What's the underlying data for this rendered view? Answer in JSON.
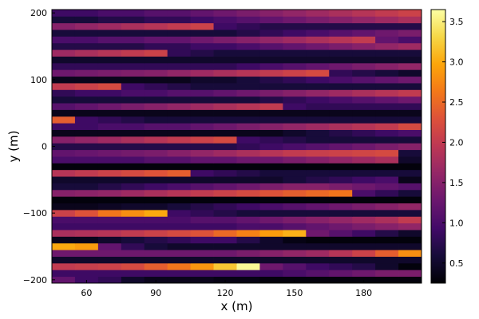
{
  "chart_data": {
    "type": "heatmap",
    "title": "",
    "xlabel": "x (m)",
    "ylabel": "y (m)",
    "colormap": "inferno",
    "grid": false,
    "legend": "none",
    "x_centers": [
      50,
      60,
      70,
      80,
      90,
      100,
      110,
      120,
      130,
      140,
      150,
      160,
      170,
      180,
      190,
      200
    ],
    "x_range": [
      45,
      205
    ],
    "y_range": [
      -205,
      205
    ],
    "y_centers": [
      -200,
      -190,
      -180,
      -170,
      -160,
      -150,
      -140,
      -130,
      -120,
      -110,
      -100,
      -90,
      -80,
      -70,
      -60,
      -50,
      -40,
      -30,
      -20,
      -10,
      0,
      10,
      20,
      30,
      40,
      50,
      60,
      70,
      80,
      90,
      100,
      110,
      120,
      130,
      140,
      150,
      160,
      170,
      180,
      190,
      200
    ],
    "x_ticks": [
      60,
      90,
      120,
      150,
      180
    ],
    "x_tick_labels": [
      "60",
      "90",
      "120",
      "150",
      "180"
    ],
    "y_ticks": [
      -200,
      -100,
      0,
      100,
      200
    ],
    "y_tick_labels": [
      "−200",
      "−100",
      "0",
      "100",
      "200"
    ],
    "colorbar": {
      "range": [
        0.25,
        3.65
      ],
      "ticks": [
        0.5,
        1.0,
        1.5,
        2.0,
        2.5,
        3.0,
        3.5
      ],
      "tick_labels": [
        "0.5",
        "1.0",
        "1.5",
        "2.0",
        "2.5",
        "3.0",
        "3.5"
      ]
    },
    "rows": [
      {
        "y": -200,
        "values": [
          1.2,
          0.9,
          0.8,
          0.5,
          0.4,
          0.4,
          0.4,
          0.35,
          0.35,
          0.3,
          0.3,
          0.3,
          0.3,
          0.3,
          0.3,
          0.3
        ]
      },
      {
        "y": -190,
        "values": [
          0.9,
          0.9,
          0.9,
          0.9,
          0.9,
          0.9,
          0.9,
          0.9,
          0.9,
          0.9,
          1.0,
          1.1,
          1.2,
          1.3,
          1.4,
          1.4
        ]
      },
      {
        "y": -180,
        "values": [
          2.0,
          2.05,
          2.1,
          2.2,
          2.4,
          2.6,
          2.85,
          3.2,
          3.6,
          1.3,
          1.1,
          0.9,
          0.8,
          0.7,
          0.5,
          0.3
        ]
      },
      {
        "y": -170,
        "values": [
          0.5,
          0.5,
          0.5,
          0.5,
          0.5,
          0.5,
          0.5,
          0.5,
          0.5,
          0.5,
          0.5,
          0.5,
          0.5,
          0.5,
          0.5,
          0.5
        ]
      },
      {
        "y": -160,
        "values": [
          1.3,
          1.3,
          1.3,
          1.3,
          1.3,
          1.3,
          1.3,
          1.3,
          1.4,
          1.5,
          1.6,
          1.7,
          1.9,
          2.1,
          2.4,
          2.8
        ]
      },
      {
        "y": -150,
        "values": [
          3.0,
          2.9,
          1.2,
          0.8,
          0.6,
          0.5,
          0.5,
          0.5,
          0.5,
          0.5,
          0.5,
          0.5,
          0.5,
          0.5,
          0.5,
          0.5
        ]
      },
      {
        "y": -140,
        "values": [
          0.4,
          0.4,
          0.5,
          0.6,
          0.7,
          0.8,
          0.9,
          0.9,
          0.7,
          0.5,
          0.35,
          0.3,
          0.3,
          0.3,
          0.3,
          0.3
        ]
      },
      {
        "y": -130,
        "values": [
          1.8,
          1.85,
          1.9,
          2.0,
          2.1,
          2.2,
          2.3,
          2.5,
          2.7,
          2.9,
          3.05,
          1.3,
          1.1,
          0.9,
          0.7,
          0.5
        ]
      },
      {
        "y": -120,
        "values": [
          0.9,
          0.9,
          0.9,
          0.9,
          0.9,
          0.9,
          0.9,
          0.9,
          1.0,
          1.0,
          1.1,
          1.2,
          1.3,
          1.4,
          1.5,
          1.6
        ]
      },
      {
        "y": -110,
        "values": [
          1.0,
          1.0,
          1.0,
          1.0,
          1.0,
          1.0,
          1.1,
          1.1,
          1.2,
          1.3,
          1.4,
          1.5,
          1.6,
          1.7,
          1.8,
          2.0
        ]
      },
      {
        "y": -100,
        "values": [
          2.1,
          2.3,
          2.6,
          2.8,
          3.0,
          0.9,
          0.8,
          0.7,
          0.6,
          0.6,
          0.6,
          0.6,
          0.6,
          0.6,
          0.6,
          0.6
        ]
      },
      {
        "y": -90,
        "values": [
          0.4,
          0.4,
          0.45,
          0.5,
          0.5,
          0.6,
          0.7,
          0.8,
          0.9,
          1.0,
          1.1,
          1.2,
          1.3,
          1.4,
          1.5,
          1.6
        ]
      },
      {
        "y": -80,
        "values": [
          0.3,
          0.3,
          0.3,
          0.3,
          0.3,
          0.3,
          0.3,
          0.3,
          0.3,
          0.3,
          0.3,
          0.3,
          0.3,
          0.3,
          0.3,
          0.3
        ]
      },
      {
        "y": -70,
        "values": [
          1.5,
          1.55,
          1.6,
          1.7,
          1.8,
          1.9,
          2.0,
          2.1,
          2.2,
          2.3,
          2.4,
          2.5,
          2.6,
          1.0,
          0.8,
          0.6
        ]
      },
      {
        "y": -60,
        "values": [
          0.6,
          0.6,
          0.7,
          0.8,
          0.9,
          1.0,
          1.1,
          1.2,
          1.3,
          1.4,
          1.5,
          1.5,
          1.4,
          1.3,
          1.2,
          1.1
        ]
      },
      {
        "y": -50,
        "values": [
          0.5,
          0.5,
          0.5,
          0.5,
          0.5,
          0.5,
          0.5,
          0.5,
          0.5,
          0.5,
          0.6,
          0.7,
          0.8,
          0.9,
          1.0,
          0.4
        ]
      },
      {
        "y": -40,
        "values": [
          1.9,
          2.0,
          2.1,
          2.2,
          2.3,
          2.4,
          0.9,
          0.8,
          0.7,
          0.6,
          0.6,
          0.6,
          0.6,
          0.6,
          0.6,
          0.6
        ]
      },
      {
        "y": -30,
        "values": [
          0.3,
          0.3,
          0.3,
          0.3,
          0.3,
          0.3,
          0.3,
          0.3,
          0.3,
          0.3,
          0.3,
          0.3,
          0.3,
          0.3,
          0.3,
          0.3
        ]
      },
      {
        "y": -20,
        "values": [
          1.0,
          1.0,
          1.0,
          1.0,
          1.1,
          1.1,
          1.2,
          1.2,
          1.3,
          1.3,
          1.4,
          1.5,
          1.6,
          1.7,
          1.8,
          0.5
        ]
      },
      {
        "y": -10,
        "values": [
          1.2,
          1.25,
          1.3,
          1.35,
          1.4,
          1.5,
          1.6,
          1.7,
          1.8,
          1.9,
          2.0,
          2.05,
          2.1,
          2.15,
          2.2,
          0.6
        ]
      },
      {
        "y": 0,
        "values": [
          0.7,
          0.7,
          0.7,
          0.7,
          0.7,
          0.7,
          0.7,
          0.7,
          0.8,
          0.9,
          1.0,
          1.1,
          1.2,
          1.3,
          1.4,
          1.5
        ]
      },
      {
        "y": 10,
        "values": [
          1.5,
          1.6,
          1.7,
          1.8,
          1.9,
          2.0,
          2.1,
          2.2,
          0.9,
          0.8,
          0.7,
          0.6,
          0.6,
          0.6,
          0.6,
          0.6
        ]
      },
      {
        "y": 20,
        "values": [
          0.4,
          0.4,
          0.4,
          0.4,
          0.4,
          0.4,
          0.4,
          0.4,
          0.4,
          0.4,
          0.5,
          0.6,
          0.7,
          0.8,
          0.9,
          1.0
        ]
      },
      {
        "y": 30,
        "values": [
          0.9,
          0.9,
          1.0,
          1.0,
          1.1,
          1.1,
          1.2,
          1.3,
          1.4,
          1.5,
          1.6,
          1.7,
          1.8,
          1.9,
          2.0,
          2.2
        ]
      },
      {
        "y": 40,
        "values": [
          2.4,
          0.9,
          0.8,
          0.7,
          0.6,
          0.6,
          0.6,
          0.6,
          0.6,
          0.6,
          0.6,
          0.6,
          0.6,
          0.6,
          0.6,
          0.6
        ]
      },
      {
        "y": 50,
        "values": [
          0.4,
          0.4,
          0.4,
          0.4,
          0.4,
          0.4,
          0.4,
          0.4,
          0.4,
          0.4,
          0.4,
          0.4,
          0.4,
          0.4,
          0.4,
          0.4
        ]
      },
      {
        "y": 60,
        "values": [
          1.1,
          1.2,
          1.3,
          1.4,
          1.5,
          1.6,
          1.7,
          1.8,
          1.9,
          2.0,
          0.9,
          0.8,
          0.8,
          0.8,
          0.8,
          0.8
        ]
      },
      {
        "y": 70,
        "values": [
          0.6,
          0.6,
          0.6,
          0.6,
          0.6,
          0.6,
          0.6,
          0.6,
          0.6,
          0.7,
          0.8,
          0.9,
          1.0,
          1.1,
          1.2,
          1.3
        ]
      },
      {
        "y": 80,
        "values": [
          0.8,
          0.9,
          0.9,
          1.0,
          1.0,
          1.1,
          1.1,
          1.2,
          1.3,
          1.4,
          1.5,
          1.6,
          1.7,
          1.8,
          1.9,
          2.0
        ]
      },
      {
        "y": 90,
        "values": [
          2.0,
          2.1,
          2.2,
          0.9,
          0.8,
          0.7,
          0.6,
          0.6,
          0.6,
          0.6,
          0.6,
          0.6,
          0.6,
          0.6,
          0.6,
          0.6
        ]
      },
      {
        "y": 100,
        "values": [
          0.4,
          0.4,
          0.4,
          0.4,
          0.4,
          0.4,
          0.5,
          0.5,
          0.6,
          0.7,
          0.8,
          0.9,
          1.0,
          1.1,
          1.2,
          1.3
        ]
      },
      {
        "y": 110,
        "values": [
          1.3,
          1.35,
          1.4,
          1.45,
          1.5,
          1.6,
          1.7,
          1.8,
          1.9,
          2.0,
          2.1,
          2.2,
          0.8,
          0.7,
          0.6,
          0.5
        ]
      },
      {
        "y": 120,
        "values": [
          0.8,
          0.8,
          0.8,
          0.8,
          0.8,
          0.8,
          0.8,
          0.8,
          0.9,
          1.0,
          1.1,
          1.2,
          1.3,
          1.4,
          1.5,
          1.6
        ]
      },
      {
        "y": 130,
        "values": [
          0.5,
          0.5,
          0.5,
          0.5,
          0.5,
          0.5,
          0.5,
          0.5,
          0.5,
          0.5,
          0.5,
          0.5,
          0.5,
          0.5,
          0.5,
          0.5
        ]
      },
      {
        "y": 140,
        "values": [
          1.7,
          1.8,
          1.9,
          2.0,
          2.1,
          0.8,
          0.7,
          0.6,
          0.6,
          0.6,
          0.6,
          0.6,
          0.6,
          0.6,
          0.6,
          0.6
        ]
      },
      {
        "y": 150,
        "values": [
          0.7,
          0.7,
          0.7,
          0.7,
          0.8,
          0.8,
          0.9,
          0.9,
          1.0,
          1.1,
          1.2,
          1.3,
          1.4,
          1.5,
          1.6,
          1.7
        ]
      },
      {
        "y": 160,
        "values": [
          1.0,
          1.0,
          1.1,
          1.1,
          1.2,
          1.2,
          1.3,
          1.4,
          1.5,
          1.6,
          1.7,
          1.8,
          1.9,
          2.0,
          1.2,
          1.0
        ]
      },
      {
        "y": 170,
        "values": [
          0.6,
          0.6,
          0.6,
          0.6,
          0.6,
          0.6,
          0.6,
          0.6,
          0.7,
          0.8,
          0.9,
          1.0,
          1.1,
          1.2,
          1.3,
          1.4
        ]
      },
      {
        "y": 180,
        "values": [
          1.5,
          1.6,
          1.7,
          1.8,
          1.9,
          2.0,
          2.1,
          0.9,
          0.8,
          0.7,
          0.7,
          0.7,
          0.7,
          0.7,
          0.7,
          0.7
        ]
      },
      {
        "y": 190,
        "values": [
          0.6,
          0.6,
          0.7,
          0.7,
          0.8,
          0.8,
          0.9,
          1.0,
          1.1,
          1.2,
          1.3,
          1.4,
          1.5,
          1.6,
          1.7,
          1.8
        ]
      },
      {
        "y": 200,
        "values": [
          0.9,
          0.9,
          1.0,
          1.0,
          1.1,
          1.1,
          1.2,
          1.3,
          1.4,
          1.5,
          1.6,
          1.7,
          1.8,
          1.9,
          2.0,
          2.1
        ]
      }
    ]
  }
}
